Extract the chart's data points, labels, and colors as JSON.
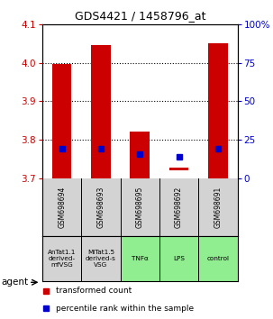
{
  "title": "GDS4421 / 1458796_at",
  "samples": [
    "GSM698694",
    "GSM698693",
    "GSM698695",
    "GSM698692",
    "GSM698691"
  ],
  "agents": [
    "AnTat1.1\nderived-\nmfVSG",
    "MiTat1.5\nderived-s\nVSG",
    "TNFα",
    "LPS",
    "control"
  ],
  "agent_colors": [
    "#d3d3d3",
    "#d3d3d3",
    "#90ee90",
    "#90ee90",
    "#90ee90"
  ],
  "red_bottom": [
    3.7,
    3.7,
    3.7,
    3.722,
    3.7
  ],
  "red_top": [
    3.997,
    4.045,
    3.822,
    3.73,
    4.05
  ],
  "blue_value": [
    3.778,
    3.778,
    3.765,
    3.758,
    3.778
  ],
  "ylim_min": 3.7,
  "ylim_max": 4.1,
  "yticks_left": [
    3.7,
    3.8,
    3.9,
    4.0,
    4.1
  ],
  "yticks_right": [
    0,
    25,
    50,
    75,
    100
  ],
  "ylabel_left_color": "#cc0000",
  "ylabel_right_color": "#0000cc",
  "bar_width": 0.5,
  "blue_marker_size": 4,
  "background_color": "#ffffff",
  "legend_red_label": "transformed count",
  "legend_blue_label": "percentile rank within the sample"
}
